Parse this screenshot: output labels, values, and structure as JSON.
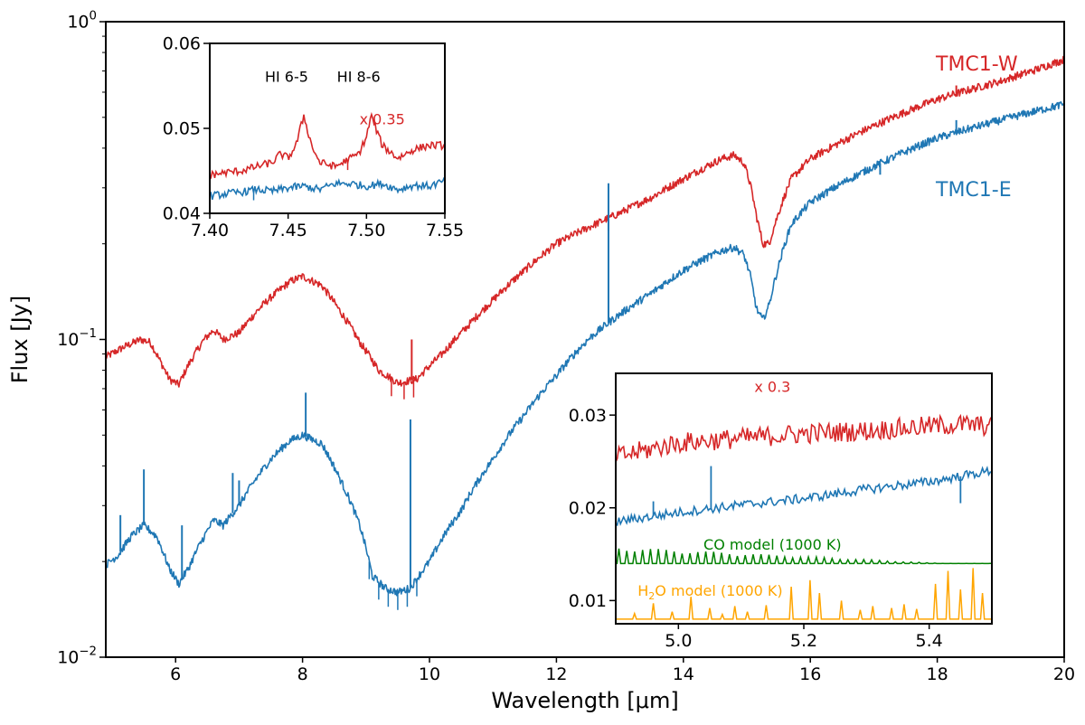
{
  "colors": {
    "red": "#d62728",
    "blue": "#1f77b4",
    "green": "#008000",
    "orange": "#ffa500"
  },
  "chart_data": [
    {
      "type": "line",
      "panel": "main",
      "xlabel": "Wavelength [μm]",
      "ylabel": "Flux [Jy]",
      "xlim": [
        4.9,
        20
      ],
      "ylim": [
        0.01,
        1
      ],
      "yscale": "log",
      "xticks": [
        6,
        8,
        10,
        12,
        14,
        16,
        18,
        20
      ],
      "xtick_labels": [
        "6",
        "8",
        "10",
        "12",
        "14",
        "16",
        "18",
        "20"
      ],
      "yticks": [
        0.01,
        0.1,
        1
      ],
      "ytick_labels": [
        {
          "base": "10",
          "exp": "−2"
        },
        {
          "base": "10",
          "exp": "−1"
        },
        {
          "base": "10",
          "exp": "0"
        }
      ],
      "series": [
        {
          "name": "TMC1-W",
          "color": "#d62728",
          "x": [
            4.9,
            5.2,
            5.45,
            5.6,
            5.75,
            5.9,
            6.05,
            6.2,
            6.45,
            6.6,
            6.75,
            7.0,
            7.4,
            7.8,
            8.0,
            8.3,
            8.6,
            8.9,
            9.2,
            9.5,
            9.8,
            10.2,
            10.6,
            11.0,
            11.5,
            12.0,
            12.5,
            13.0,
            13.5,
            14.0,
            14.3,
            14.6,
            14.8,
            14.95,
            15.05,
            15.15,
            15.25,
            15.35,
            15.5,
            15.7,
            16.0,
            16.5,
            17.0,
            17.5,
            18.0,
            18.5,
            19.0,
            19.5,
            20.0
          ],
          "y": [
            0.088,
            0.095,
            0.1,
            0.098,
            0.086,
            0.075,
            0.072,
            0.083,
            0.1,
            0.107,
            0.1,
            0.105,
            0.13,
            0.152,
            0.158,
            0.148,
            0.122,
            0.098,
            0.08,
            0.073,
            0.075,
            0.09,
            0.11,
            0.133,
            0.165,
            0.2,
            0.225,
            0.25,
            0.28,
            0.32,
            0.345,
            0.37,
            0.38,
            0.36,
            0.31,
            0.245,
            0.2,
            0.2,
            0.25,
            0.32,
            0.37,
            0.42,
            0.47,
            0.52,
            0.57,
            0.61,
            0.65,
            0.7,
            0.76
          ],
          "spikes": [
            {
              "x": 12.82,
              "y": 0.22
            },
            {
              "x": 9.72,
              "y": 0.1
            },
            {
              "x": 18.3,
              "y": 0.63
            }
          ]
        },
        {
          "name": "TMC1-E",
          "color": "#1f77b4",
          "x": [
            4.9,
            5.1,
            5.3,
            5.5,
            5.7,
            5.9,
            6.05,
            6.2,
            6.4,
            6.6,
            6.75,
            7.0,
            7.5,
            7.8,
            8.0,
            8.3,
            8.6,
            8.9,
            9.1,
            9.3,
            9.5,
            9.7,
            10.0,
            10.5,
            11.0,
            11.5,
            12.0,
            12.5,
            13.0,
            13.5,
            14.0,
            14.3,
            14.6,
            14.8,
            14.95,
            15.05,
            15.15,
            15.25,
            15.35,
            15.5,
            15.7,
            16.0,
            16.5,
            17.0,
            17.5,
            18.0,
            18.5,
            19.0,
            19.5,
            20.0
          ],
          "y": [
            0.0195,
            0.021,
            0.024,
            0.026,
            0.024,
            0.019,
            0.017,
            0.019,
            0.023,
            0.027,
            0.026,
            0.03,
            0.042,
            0.048,
            0.05,
            0.047,
            0.036,
            0.026,
            0.018,
            0.0165,
            0.016,
            0.0165,
            0.02,
            0.029,
            0.042,
            0.058,
            0.077,
            0.1,
            0.12,
            0.14,
            0.165,
            0.178,
            0.19,
            0.195,
            0.185,
            0.16,
            0.125,
            0.115,
            0.128,
            0.17,
            0.23,
            0.27,
            0.31,
            0.35,
            0.39,
            0.43,
            0.46,
            0.49,
            0.52,
            0.55
          ],
          "spikes": [
            {
              "x": 5.5,
              "y": 0.039
            },
            {
              "x": 5.13,
              "y": 0.028
            },
            {
              "x": 6.1,
              "y": 0.026
            },
            {
              "x": 6.9,
              "y": 0.038
            },
            {
              "x": 7.0,
              "y": 0.036
            },
            {
              "x": 8.05,
              "y": 0.068
            },
            {
              "x": 9.7,
              "y": 0.056
            },
            {
              "x": 12.3,
              "y": 0.092
            },
            {
              "x": 12.82,
              "y": 0.31
            },
            {
              "x": 17.1,
              "y": 0.33
            },
            {
              "x": 18.3,
              "y": 0.49
            }
          ]
        }
      ]
    },
    {
      "type": "line",
      "panel": "inset-upper-left",
      "xlim": [
        7.4,
        7.55
      ],
      "ylim": [
        0.04,
        0.06
      ],
      "xticks": [
        7.4,
        7.45,
        7.5,
        7.55
      ],
      "xtick_labels": [
        "7.40",
        "7.45",
        "7.50",
        "7.55"
      ],
      "yticks": [
        0.04,
        0.05,
        0.06
      ],
      "ytick_labels": [
        "0.04",
        "0.05",
        "0.06"
      ],
      "annotations": [
        {
          "text": "HI 6-5",
          "x": 7.449,
          "y": 0.0555
        },
        {
          "text": "HI 8-6",
          "x": 7.495,
          "y": 0.0555
        },
        {
          "text": "x 0.35",
          "x": 7.51,
          "y": 0.0505,
          "color": "#d62728"
        }
      ],
      "series": [
        {
          "name": "TMC1-W",
          "color": "#d62728",
          "x": [
            7.4,
            7.41,
            7.42,
            7.43,
            7.44,
            7.445,
            7.45,
            7.455,
            7.46,
            7.465,
            7.47,
            7.48,
            7.49,
            7.495,
            7.5,
            7.503,
            7.507,
            7.51,
            7.52,
            7.53,
            7.54,
            7.55
          ],
          "y": [
            0.0445,
            0.0448,
            0.045,
            0.0455,
            0.046,
            0.047,
            0.0465,
            0.048,
            0.0515,
            0.048,
            0.046,
            0.0455,
            0.0465,
            0.047,
            0.049,
            0.0515,
            0.0495,
            0.048,
            0.0465,
            0.0475,
            0.048,
            0.048
          ]
        },
        {
          "name": "TMC1-E",
          "color": "#1f77b4",
          "x": [
            7.4,
            7.41,
            7.42,
            7.43,
            7.44,
            7.45,
            7.46,
            7.47,
            7.48,
            7.49,
            7.5,
            7.51,
            7.52,
            7.53,
            7.54,
            7.55
          ],
          "y": [
            0.042,
            0.0423,
            0.0425,
            0.0428,
            0.0426,
            0.043,
            0.0432,
            0.0428,
            0.0435,
            0.0435,
            0.0432,
            0.0435,
            0.0428,
            0.0433,
            0.0432,
            0.0438
          ]
        }
      ]
    },
    {
      "type": "line",
      "panel": "inset-lower-right",
      "xlim": [
        4.9,
        5.5
      ],
      "ylim": [
        0.0075,
        0.0345
      ],
      "xticks": [
        5.0,
        5.2,
        5.4
      ],
      "xtick_labels": [
        "5.0",
        "5.2",
        "5.4"
      ],
      "yticks": [
        0.01,
        0.02,
        0.03
      ],
      "ytick_labels": [
        "0.01",
        "0.02",
        "0.03"
      ],
      "annotations": [
        {
          "text": "x 0.3",
          "x": 5.15,
          "y": 0.0325,
          "color": "#d62728"
        },
        {
          "text": "CO model (1000 K)",
          "x": 5.15,
          "y": 0.0155,
          "color": "#008000"
        },
        {
          "prefix": "H",
          "sub": "2",
          "suffix": "O model (1000 K)",
          "x": 4.935,
          "y": 0.0105,
          "color": "#ffa500"
        }
      ],
      "series": [
        {
          "name": "TMC1-W",
          "color": "#d62728",
          "x": [
            4.9,
            5.0,
            5.1,
            5.2,
            5.3,
            5.4,
            5.45,
            5.5
          ],
          "y": [
            0.0255,
            0.027,
            0.0275,
            0.028,
            0.0283,
            0.0288,
            0.029,
            0.0288
          ],
          "noise": 0.0011
        },
        {
          "name": "TMC1-E",
          "color": "#1f77b4",
          "x": [
            4.9,
            5.0,
            5.1,
            5.2,
            5.3,
            5.4,
            5.5
          ],
          "y": [
            0.0185,
            0.0195,
            0.0203,
            0.021,
            0.022,
            0.0228,
            0.024
          ],
          "noise": 0.0005
        },
        {
          "name": "CO model (1000 K)",
          "color": "#008000",
          "baseline": 0.014,
          "line_spacing": 0.0126,
          "line_start": 4.905,
          "amplitude": 0.0018,
          "decay_end": 5.42
        },
        {
          "name": "H2O model (1000 K)",
          "color": "#ffa500",
          "baseline": 0.008,
          "lines": [
            [
              4.93,
              0.0006
            ],
            [
              4.96,
              0.0017
            ],
            [
              4.99,
              0.0008
            ],
            [
              5.02,
              0.0024
            ],
            [
              5.05,
              0.0012
            ],
            [
              5.07,
              0.0005
            ],
            [
              5.09,
              0.0014
            ],
            [
              5.11,
              0.0008
            ],
            [
              5.14,
              0.0015
            ],
            [
              5.18,
              0.0035
            ],
            [
              5.21,
              0.0042
            ],
            [
              5.225,
              0.0028
            ],
            [
              5.26,
              0.002
            ],
            [
              5.29,
              0.001
            ],
            [
              5.31,
              0.0014
            ],
            [
              5.34,
              0.0012
            ],
            [
              5.36,
              0.0016
            ],
            [
              5.38,
              0.0011
            ],
            [
              5.41,
              0.0038
            ],
            [
              5.43,
              0.0052
            ],
            [
              5.45,
              0.0032
            ],
            [
              5.47,
              0.0055
            ],
            [
              5.485,
              0.0028
            ]
          ]
        }
      ]
    }
  ],
  "labels": {
    "tmc1w": "TMC1-W",
    "tmc1e": "TMC1-E"
  }
}
